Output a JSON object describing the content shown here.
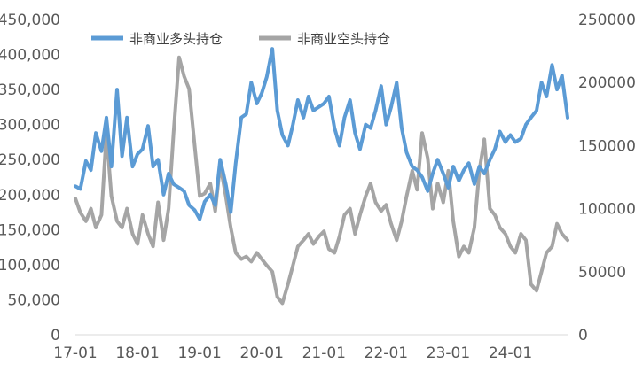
{
  "chart_data": {
    "type": "line",
    "x_ticks": [
      "17-01",
      "18-01",
      "19-01",
      "20-01",
      "21-01",
      "22-01",
      "23-01",
      "24-01"
    ],
    "y_left_ticks": [
      "0",
      "50,000",
      "100,000",
      "150,000",
      "200,000",
      "250,000",
      "300,000",
      "350,000",
      "400,000",
      "450,000"
    ],
    "y_right_ticks": [
      "0",
      "50000",
      "100000",
      "150000",
      "200000",
      "250000"
    ],
    "ylim_left": [
      0,
      450000
    ],
    "ylim_right": [
      0,
      250000
    ],
    "xlim": [
      2017.0,
      2024.92
    ],
    "grid": false,
    "legend_position": "top-left",
    "series": [
      {
        "name": "非商业多头持仓",
        "axis": "left",
        "color": "#5B9BD5",
        "points": [
          [
            2017.0,
            212000
          ],
          [
            2017.08,
            208000
          ],
          [
            2017.17,
            248000
          ],
          [
            2017.25,
            235000
          ],
          [
            2017.33,
            288000
          ],
          [
            2017.42,
            262000
          ],
          [
            2017.5,
            310000
          ],
          [
            2017.58,
            240000
          ],
          [
            2017.67,
            350000
          ],
          [
            2017.75,
            255000
          ],
          [
            2017.83,
            310000
          ],
          [
            2017.92,
            240000
          ],
          [
            2018.0,
            258000
          ],
          [
            2018.08,
            265000
          ],
          [
            2018.17,
            298000
          ],
          [
            2018.25,
            240000
          ],
          [
            2018.33,
            250000
          ],
          [
            2018.42,
            200000
          ],
          [
            2018.5,
            230000
          ],
          [
            2018.58,
            215000
          ],
          [
            2018.67,
            210000
          ],
          [
            2018.75,
            205000
          ],
          [
            2018.83,
            185000
          ],
          [
            2018.92,
            178000
          ],
          [
            2019.0,
            165000
          ],
          [
            2019.08,
            190000
          ],
          [
            2019.17,
            200000
          ],
          [
            2019.25,
            185000
          ],
          [
            2019.33,
            250000
          ],
          [
            2019.42,
            215000
          ],
          [
            2019.5,
            175000
          ],
          [
            2019.58,
            245000
          ],
          [
            2019.67,
            310000
          ],
          [
            2019.75,
            315000
          ],
          [
            2019.83,
            360000
          ],
          [
            2019.92,
            330000
          ],
          [
            2020.0,
            345000
          ],
          [
            2020.08,
            368000
          ],
          [
            2020.17,
            408000
          ],
          [
            2020.25,
            320000
          ],
          [
            2020.33,
            285000
          ],
          [
            2020.42,
            270000
          ],
          [
            2020.5,
            300000
          ],
          [
            2020.58,
            335000
          ],
          [
            2020.67,
            310000
          ],
          [
            2020.75,
            340000
          ],
          [
            2020.83,
            320000
          ],
          [
            2021.0,
            330000
          ],
          [
            2021.08,
            340000
          ],
          [
            2021.17,
            295000
          ],
          [
            2021.25,
            270000
          ],
          [
            2021.33,
            310000
          ],
          [
            2021.42,
            335000
          ],
          [
            2021.5,
            288000
          ],
          [
            2021.58,
            265000
          ],
          [
            2021.67,
            300000
          ],
          [
            2021.75,
            295000
          ],
          [
            2021.83,
            320000
          ],
          [
            2021.92,
            355000
          ],
          [
            2022.0,
            300000
          ],
          [
            2022.08,
            325000
          ],
          [
            2022.17,
            360000
          ],
          [
            2022.25,
            295000
          ],
          [
            2022.33,
            260000
          ],
          [
            2022.42,
            240000
          ],
          [
            2022.5,
            235000
          ],
          [
            2022.58,
            225000
          ],
          [
            2022.67,
            205000
          ],
          [
            2022.75,
            230000
          ],
          [
            2022.83,
            250000
          ],
          [
            2022.92,
            230000
          ],
          [
            2023.0,
            210000
          ],
          [
            2023.08,
            240000
          ],
          [
            2023.17,
            220000
          ],
          [
            2023.25,
            235000
          ],
          [
            2023.33,
            245000
          ],
          [
            2023.42,
            215000
          ],
          [
            2023.5,
            240000
          ],
          [
            2023.58,
            230000
          ],
          [
            2023.67,
            250000
          ],
          [
            2023.75,
            265000
          ],
          [
            2023.83,
            290000
          ],
          [
            2023.92,
            275000
          ],
          [
            2024.0,
            285000
          ],
          [
            2024.08,
            275000
          ],
          [
            2024.17,
            280000
          ],
          [
            2024.25,
            300000
          ],
          [
            2024.33,
            310000
          ],
          [
            2024.42,
            320000
          ],
          [
            2024.5,
            360000
          ],
          [
            2024.58,
            340000
          ],
          [
            2024.67,
            385000
          ],
          [
            2024.75,
            350000
          ],
          [
            2024.83,
            370000
          ],
          [
            2024.92,
            310000
          ]
        ]
      },
      {
        "name": "非商业空头持仓",
        "axis": "right",
        "color": "#A5A5A5",
        "points": [
          [
            2017.0,
            108000
          ],
          [
            2017.08,
            97000
          ],
          [
            2017.17,
            90000
          ],
          [
            2017.25,
            100000
          ],
          [
            2017.33,
            85000
          ],
          [
            2017.42,
            95000
          ],
          [
            2017.5,
            160000
          ],
          [
            2017.58,
            110000
          ],
          [
            2017.67,
            90000
          ],
          [
            2017.75,
            85000
          ],
          [
            2017.83,
            100000
          ],
          [
            2017.92,
            80000
          ],
          [
            2018.0,
            72000
          ],
          [
            2018.08,
            95000
          ],
          [
            2018.17,
            80000
          ],
          [
            2018.25,
            70000
          ],
          [
            2018.33,
            105000
          ],
          [
            2018.42,
            75000
          ],
          [
            2018.5,
            100000
          ],
          [
            2018.58,
            160000
          ],
          [
            2018.67,
            220000
          ],
          [
            2018.75,
            205000
          ],
          [
            2018.83,
            195000
          ],
          [
            2018.92,
            150000
          ],
          [
            2019.0,
            110000
          ],
          [
            2019.08,
            112000
          ],
          [
            2019.17,
            120000
          ],
          [
            2019.25,
            98000
          ],
          [
            2019.33,
            135000
          ],
          [
            2019.42,
            110000
          ],
          [
            2019.5,
            85000
          ],
          [
            2019.58,
            65000
          ],
          [
            2019.67,
            60000
          ],
          [
            2019.75,
            62000
          ],
          [
            2019.83,
            58000
          ],
          [
            2019.92,
            65000
          ],
          [
            2020.0,
            60000
          ],
          [
            2020.08,
            55000
          ],
          [
            2020.17,
            50000
          ],
          [
            2020.25,
            30000
          ],
          [
            2020.33,
            25000
          ],
          [
            2020.42,
            40000
          ],
          [
            2020.5,
            55000
          ],
          [
            2020.58,
            70000
          ],
          [
            2020.67,
            75000
          ],
          [
            2020.75,
            80000
          ],
          [
            2020.83,
            72000
          ],
          [
            2020.92,
            78000
          ],
          [
            2021.0,
            82000
          ],
          [
            2021.08,
            68000
          ],
          [
            2021.17,
            65000
          ],
          [
            2021.25,
            78000
          ],
          [
            2021.33,
            95000
          ],
          [
            2021.42,
            100000
          ],
          [
            2021.5,
            80000
          ],
          [
            2021.58,
            95000
          ],
          [
            2021.67,
            110000
          ],
          [
            2021.75,
            120000
          ],
          [
            2021.83,
            105000
          ],
          [
            2021.92,
            98000
          ],
          [
            2022.0,
            103000
          ],
          [
            2022.08,
            88000
          ],
          [
            2022.17,
            75000
          ],
          [
            2022.25,
            90000
          ],
          [
            2022.33,
            110000
          ],
          [
            2022.42,
            130000
          ],
          [
            2022.5,
            115000
          ],
          [
            2022.58,
            160000
          ],
          [
            2022.67,
            140000
          ],
          [
            2022.75,
            100000
          ],
          [
            2022.83,
            120000
          ],
          [
            2022.92,
            105000
          ],
          [
            2023.0,
            130000
          ],
          [
            2023.08,
            90000
          ],
          [
            2023.17,
            62000
          ],
          [
            2023.25,
            70000
          ],
          [
            2023.33,
            65000
          ],
          [
            2023.42,
            85000
          ],
          [
            2023.5,
            130000
          ],
          [
            2023.58,
            155000
          ],
          [
            2023.67,
            100000
          ],
          [
            2023.75,
            95000
          ],
          [
            2023.83,
            85000
          ],
          [
            2023.92,
            80000
          ],
          [
            2024.0,
            70000
          ],
          [
            2024.08,
            65000
          ],
          [
            2024.17,
            80000
          ],
          [
            2024.25,
            75000
          ],
          [
            2024.33,
            40000
          ],
          [
            2024.42,
            35000
          ],
          [
            2024.5,
            50000
          ],
          [
            2024.58,
            65000
          ],
          [
            2024.67,
            70000
          ],
          [
            2024.75,
            88000
          ],
          [
            2024.83,
            80000
          ],
          [
            2024.92,
            75000
          ]
        ]
      }
    ]
  }
}
